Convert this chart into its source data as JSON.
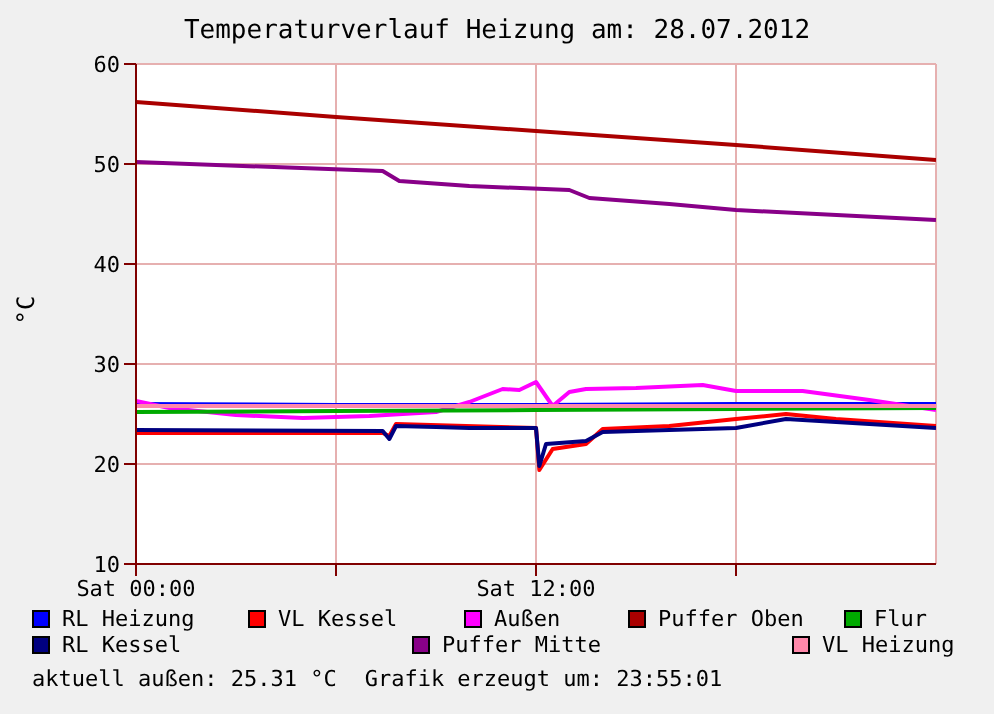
{
  "chart_data": {
    "type": "line",
    "title": "Temperaturverlauf Heizung am: 28.07.2012",
    "ylabel": "°C",
    "xlim": [
      "2012-07-28T00:00",
      "2012-07-29T00:00"
    ],
    "xticks": [
      {
        "value": "2012-07-28T00:00",
        "label": "Sat 00:00"
      },
      {
        "value": "2012-07-28T06:00",
        "label": null
      },
      {
        "value": "2012-07-28T12:00",
        "label": "Sat 12:00"
      },
      {
        "value": "2012-07-28T18:00",
        "label": null
      }
    ],
    "ylim": [
      10,
      60
    ],
    "yticks": [
      10,
      20,
      30,
      40,
      50,
      60
    ],
    "grid": true,
    "legend": "bottom",
    "marker": "none",
    "line_style": "solid",
    "annotations": [
      "aktuell außen: 25.31 °C",
      "Grafik erzeugt um: 23:55:01"
    ],
    "series": [
      {
        "name": "RL Heizung",
        "color": "#0000ff",
        "x": [
          "2012-07-28T00:00",
          "2012-07-28T06:00",
          "2012-07-28T12:00",
          "2012-07-28T18:00",
          "2012-07-29T00:00"
        ],
        "values": [
          26.0,
          25.9,
          25.9,
          26.0,
          26.0
        ]
      },
      {
        "name": "VL Kessel",
        "color": "#ff0000",
        "x": [
          "2012-07-28T00:00",
          "2012-07-28T07:24",
          "2012-07-28T07:36",
          "2012-07-28T07:48",
          "2012-07-28T12:00",
          "2012-07-28T12:06",
          "2012-07-28T12:30",
          "2012-07-28T13:30",
          "2012-07-28T14:00",
          "2012-07-28T16:00",
          "2012-07-28T18:00",
          "2012-07-28T19:30",
          "2012-07-28T21:00",
          "2012-07-29T00:00"
        ],
        "values": [
          23.1,
          23.1,
          22.8,
          24.0,
          23.6,
          19.4,
          21.5,
          22.0,
          23.5,
          23.8,
          24.5,
          25.0,
          24.5,
          23.8
        ]
      },
      {
        "name": "Außen",
        "color": "#ff00ff",
        "x": [
          "2012-07-28T00:00",
          "2012-07-28T01:00",
          "2012-07-28T03:00",
          "2012-07-28T05:00",
          "2012-07-28T07:00",
          "2012-07-28T08:00",
          "2012-07-28T09:00",
          "2012-07-28T10:00",
          "2012-07-28T11:00",
          "2012-07-28T11:30",
          "2012-07-28T12:00",
          "2012-07-28T12:30",
          "2012-07-28T13:00",
          "2012-07-28T13:30",
          "2012-07-28T15:00",
          "2012-07-28T17:00",
          "2012-07-28T18:00",
          "2012-07-28T20:00",
          "2012-07-28T22:00",
          "2012-07-28T23:00",
          "2012-07-29T00:00"
        ],
        "values": [
          26.3,
          25.6,
          24.9,
          24.6,
          24.8,
          25.0,
          25.2,
          26.2,
          27.5,
          27.4,
          28.2,
          25.8,
          27.2,
          27.5,
          27.6,
          27.9,
          27.3,
          27.3,
          26.4,
          25.9,
          25.4
        ]
      },
      {
        "name": "Puffer Oben",
        "color": "#aa0000",
        "x": [
          "2012-07-28T00:00",
          "2012-07-28T06:00",
          "2012-07-28T12:00",
          "2012-07-28T18:00",
          "2012-07-29T00:00"
        ],
        "values": [
          56.2,
          54.7,
          53.3,
          51.9,
          50.4
        ]
      },
      {
        "name": "Flur",
        "color": "#00aa00",
        "x": [
          "2012-07-28T00:00",
          "2012-07-28T06:00",
          "2012-07-28T12:00",
          "2012-07-28T18:00",
          "2012-07-29T00:00"
        ],
        "values": [
          25.2,
          25.3,
          25.4,
          25.5,
          25.6
        ]
      },
      {
        "name": "RL Kessel",
        "color": "#000080",
        "x": [
          "2012-07-28T00:00",
          "2012-07-28T07:24",
          "2012-07-28T07:36",
          "2012-07-28T07:48",
          "2012-07-28T09:00",
          "2012-07-28T10:00",
          "2012-07-28T12:00",
          "2012-07-28T12:06",
          "2012-07-28T12:18",
          "2012-07-28T13:30",
          "2012-07-28T14:00",
          "2012-07-28T16:00",
          "2012-07-28T18:00",
          "2012-07-28T19:30",
          "2012-07-28T21:00",
          "2012-07-29T00:00"
        ],
        "values": [
          23.4,
          23.3,
          22.5,
          23.8,
          23.7,
          23.6,
          23.6,
          19.8,
          22.0,
          22.3,
          23.2,
          23.4,
          23.6,
          24.5,
          24.2,
          23.6
        ]
      },
      {
        "name": "Puffer Mitte",
        "color": "#880088",
        "x": [
          "2012-07-28T00:00",
          "2012-07-28T07:24",
          "2012-07-28T07:54",
          "2012-07-28T10:00",
          "2012-07-28T13:00",
          "2012-07-28T13:36",
          "2012-07-28T16:00",
          "2012-07-28T18:00",
          "2012-07-29T00:00"
        ],
        "values": [
          50.2,
          49.3,
          48.3,
          47.8,
          47.4,
          46.6,
          46.0,
          45.4,
          44.4
        ]
      },
      {
        "name": "VL Heizung",
        "color": "#ff88aa",
        "x": [
          "2012-07-28T00:00",
          "2012-07-28T06:00",
          "2012-07-28T12:00",
          "2012-07-28T18:00",
          "2012-07-29T00:00"
        ],
        "values": [
          25.8,
          25.8,
          25.8,
          25.8,
          25.8
        ]
      }
    ]
  }
}
